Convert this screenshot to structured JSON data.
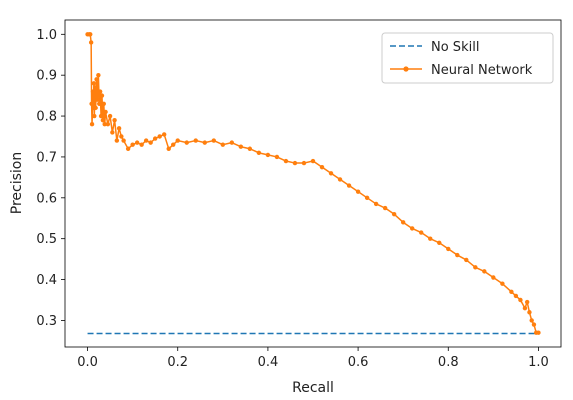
{
  "chart_data": {
    "type": "line",
    "title": "",
    "xlabel": "Recall",
    "ylabel": "Precision",
    "xlim": [
      -0.05,
      1.05
    ],
    "ylim": [
      0.235,
      1.035
    ],
    "xticks": [
      "0.0",
      "0.2",
      "0.4",
      "0.6",
      "0.8",
      "1.0"
    ],
    "yticks": [
      "0.3",
      "0.4",
      "0.5",
      "0.6",
      "0.7",
      "0.8",
      "0.9",
      "1.0"
    ],
    "grid": false,
    "legend_position": "top-right",
    "series": [
      {
        "name": "No Skill",
        "color": "#1f77b4",
        "style": "dashed",
        "marker": "none",
        "x": [
          0.0,
          1.0
        ],
        "y": [
          0.268,
          0.268
        ]
      },
      {
        "name": "Neural Network",
        "color": "#ff7f0e",
        "style": "solid",
        "marker": "dot",
        "x": [
          0.0,
          0.004,
          0.006,
          0.008,
          0.009,
          0.01,
          0.012,
          0.013,
          0.014,
          0.015,
          0.016,
          0.017,
          0.018,
          0.02,
          0.022,
          0.024,
          0.026,
          0.028,
          0.03,
          0.032,
          0.034,
          0.036,
          0.038,
          0.04,
          0.045,
          0.05,
          0.055,
          0.06,
          0.065,
          0.07,
          0.075,
          0.08,
          0.09,
          0.1,
          0.11,
          0.12,
          0.13,
          0.14,
          0.15,
          0.16,
          0.17,
          0.18,
          0.19,
          0.2,
          0.22,
          0.24,
          0.26,
          0.28,
          0.3,
          0.32,
          0.34,
          0.36,
          0.38,
          0.4,
          0.42,
          0.44,
          0.46,
          0.48,
          0.5,
          0.52,
          0.54,
          0.56,
          0.58,
          0.6,
          0.62,
          0.64,
          0.66,
          0.68,
          0.7,
          0.72,
          0.74,
          0.76,
          0.78,
          0.8,
          0.82,
          0.84,
          0.86,
          0.88,
          0.9,
          0.92,
          0.94,
          0.95,
          0.96,
          0.97,
          0.975,
          0.98,
          0.985,
          0.99,
          0.995,
          1.0
        ],
        "y": [
          1.0,
          1.0,
          1.0,
          0.98,
          0.83,
          0.78,
          0.86,
          0.82,
          0.88,
          0.8,
          0.84,
          0.87,
          0.82,
          0.89,
          0.84,
          0.9,
          0.83,
          0.86,
          0.8,
          0.85,
          0.79,
          0.83,
          0.78,
          0.81,
          0.78,
          0.8,
          0.76,
          0.79,
          0.74,
          0.77,
          0.75,
          0.74,
          0.72,
          0.73,
          0.735,
          0.73,
          0.74,
          0.735,
          0.745,
          0.75,
          0.755,
          0.72,
          0.73,
          0.74,
          0.735,
          0.74,
          0.735,
          0.74,
          0.73,
          0.735,
          0.725,
          0.72,
          0.71,
          0.705,
          0.7,
          0.69,
          0.685,
          0.685,
          0.69,
          0.675,
          0.66,
          0.645,
          0.63,
          0.615,
          0.6,
          0.585,
          0.575,
          0.56,
          0.54,
          0.525,
          0.515,
          0.5,
          0.49,
          0.475,
          0.46,
          0.448,
          0.43,
          0.42,
          0.405,
          0.39,
          0.37,
          0.36,
          0.35,
          0.33,
          0.345,
          0.32,
          0.3,
          0.29,
          0.27,
          0.27
        ]
      }
    ]
  }
}
